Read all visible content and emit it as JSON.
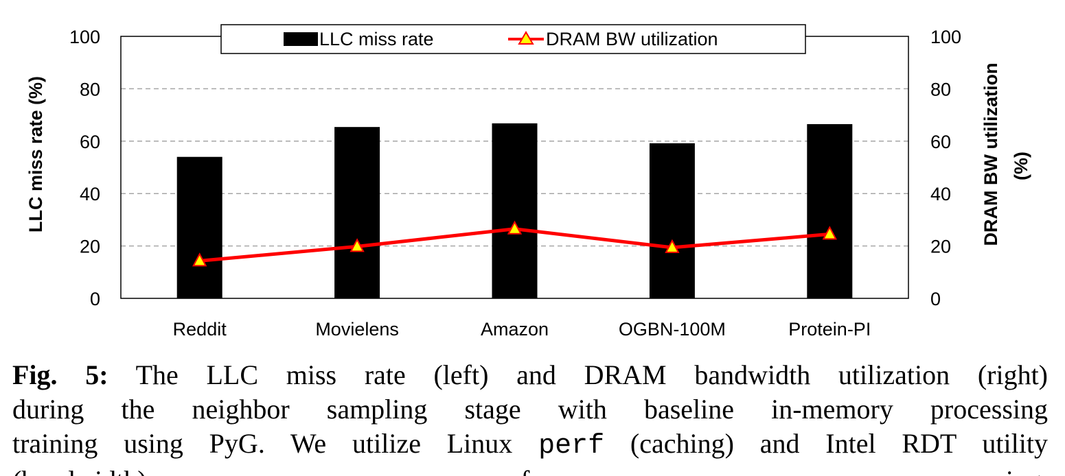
{
  "chart_data": {
    "type": "bar",
    "categories": [
      "Reddit",
      "Movielens",
      "Amazon",
      "OGBN-100M",
      "Protein-PI"
    ],
    "series": [
      {
        "name": "LLC miss rate",
        "type": "bar",
        "axis": "left",
        "values": [
          54,
          65.4,
          66.8,
          59.2,
          66.5
        ]
      },
      {
        "name": "DRAM BW utilization",
        "type": "line",
        "axis": "right",
        "marker": "triangle",
        "values": [
          14.3,
          19.8,
          26.5,
          19.4,
          24.5
        ]
      }
    ],
    "ylabel": "LLC miss rate (%)",
    "ylabel_right": [
      "DRAM BW utilization",
      "(%)"
    ],
    "ylim": [
      0,
      100
    ],
    "ylim_right": [
      0,
      100
    ],
    "yticks": [
      "0",
      "20",
      "40",
      "60",
      "80",
      "100"
    ],
    "grid": true,
    "legend": "top-center"
  },
  "caption": {
    "label": "Fig. 5:",
    "line1": "The LLC miss rate (left) and DRAM bandwidth utilization (right)",
    "line2": "during the neighbor sampling stage with baseline in-memory processing",
    "line3_a": "training using PyG. We utilize Linux ",
    "line3_code": "perf",
    "line3_b": " (caching) and Intel RDT utility",
    "line4": "(bandwidth) for measuring."
  },
  "colors": {
    "bar": "#000000",
    "line": "#ff0000",
    "marker_fill": "#ffff00",
    "grid": "#a6a6a6"
  }
}
